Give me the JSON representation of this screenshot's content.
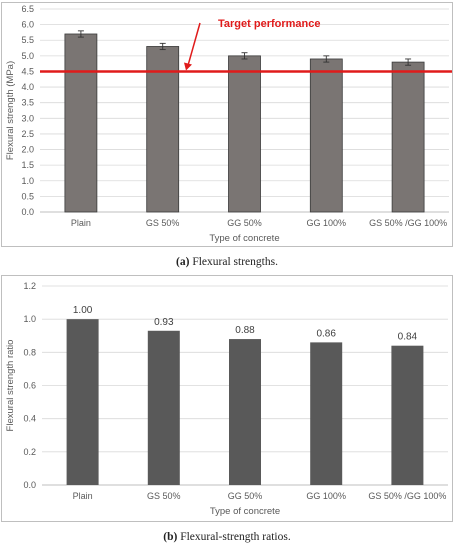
{
  "chart_data": [
    {
      "type": "bar",
      "panel": "a",
      "categories": [
        "Plain",
        "GS 50%",
        "GG 50%",
        "GG 100%",
        "GS 50% /GG 100%"
      ],
      "values": [
        5.7,
        5.3,
        5.0,
        4.9,
        4.8
      ],
      "errors": [
        0.1,
        0.1,
        0.1,
        0.1,
        0.1
      ],
      "xlabel": "Type of concrete",
      "ylabel": "Flexural strength (MPa)",
      "ylim": [
        0,
        6.5
      ],
      "yticks": [
        "0.0",
        "0.5",
        "1.0",
        "1.5",
        "2.0",
        "2.5",
        "3.0",
        "3.5",
        "4.0",
        "4.5",
        "5.0",
        "5.5",
        "6.0",
        "6.5"
      ],
      "bar_color": "#7a7573",
      "reference_line": {
        "value": 4.5,
        "label": "Target performance",
        "color": "#e01b1b"
      },
      "grid": true
    },
    {
      "type": "bar",
      "panel": "b",
      "categories": [
        "Plain",
        "GS 50%",
        "GG 50%",
        "GG 100%",
        "GS 50% /GG 100%"
      ],
      "values": [
        1.0,
        0.93,
        0.88,
        0.86,
        0.84
      ],
      "data_labels": [
        "1.00",
        "0.93",
        "0.88",
        "0.86",
        "0.84"
      ],
      "xlabel": "Type of concrete",
      "ylabel": "Flexural strength ratio",
      "ylim": [
        0,
        1.2
      ],
      "yticks": [
        "0.0",
        "0.2",
        "0.4",
        "0.6",
        "0.8",
        "1.0",
        "1.2"
      ],
      "bar_color": "#595959",
      "grid": true
    }
  ],
  "captions": {
    "a_tag": "(a)",
    "a_text": " Flexural strengths.",
    "b_tag": "(b)",
    "b_text": " Flexural-strength ratios."
  }
}
